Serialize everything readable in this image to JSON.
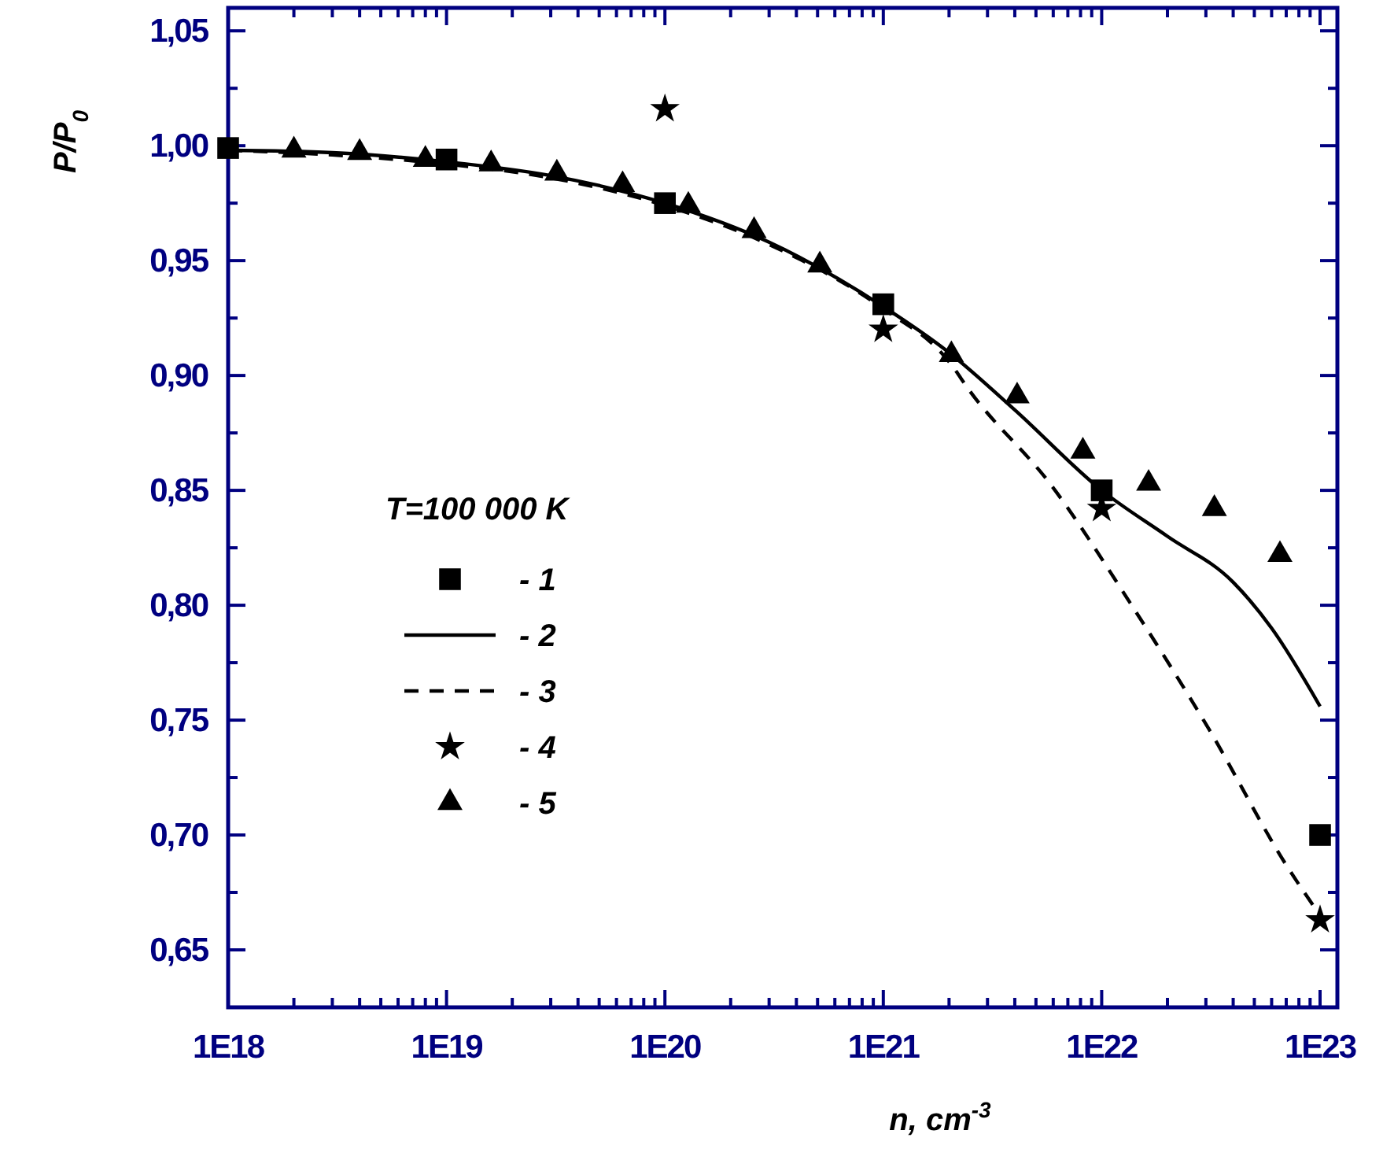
{
  "chart_data": {
    "type": "scatter",
    "xlabel": "n, cm$^{-3}$",
    "ylabel": "P/P$_{0}$",
    "legend_title": "T=100 000 K",
    "legend": "bottom left",
    "log": "x",
    "grid": false,
    "xlim": [
      1e+18,
      1.2e+23
    ],
    "ylim": [
      0.625,
      1.06
    ],
    "xticks": [
      {
        "value": 1e+18,
        "label": "1E18"
      },
      {
        "value": 1e+19,
        "label": "1E19"
      },
      {
        "value": 1e+20,
        "label": "1E20"
      },
      {
        "value": 1e+21,
        "label": "1E21"
      },
      {
        "value": 1e+22,
        "label": "1E22"
      },
      {
        "value": 1e+23,
        "label": "1E23"
      },
      {
        "value": 2e+18,
        "label": null
      },
      {
        "value": 3e+18,
        "label": null
      },
      {
        "value": 4e+18,
        "label": null
      },
      {
        "value": 5e+18,
        "label": null
      },
      {
        "value": 6e+18,
        "label": null
      },
      {
        "value": 7e+18,
        "label": null
      },
      {
        "value": 8e+18,
        "label": null
      },
      {
        "value": 9e+18,
        "label": null
      },
      {
        "value": 2e+19,
        "label": null
      },
      {
        "value": 3e+19,
        "label": null
      },
      {
        "value": 4e+19,
        "label": null
      },
      {
        "value": 5e+19,
        "label": null
      },
      {
        "value": 6e+19,
        "label": null
      },
      {
        "value": 7e+19,
        "label": null
      },
      {
        "value": 8e+19,
        "label": null
      },
      {
        "value": 9e+19,
        "label": null
      },
      {
        "value": 2e+20,
        "label": null
      },
      {
        "value": 3e+20,
        "label": null
      },
      {
        "value": 4e+20,
        "label": null
      },
      {
        "value": 5e+20,
        "label": null
      },
      {
        "value": 6e+20,
        "label": null
      },
      {
        "value": 7e+20,
        "label": null
      },
      {
        "value": 8e+20,
        "label": null
      },
      {
        "value": 9e+20,
        "label": null
      },
      {
        "value": 2e+21,
        "label": null
      },
      {
        "value": 3e+21,
        "label": null
      },
      {
        "value": 4e+21,
        "label": null
      },
      {
        "value": 5e+21,
        "label": null
      },
      {
        "value": 6e+21,
        "label": null
      },
      {
        "value": 7e+21,
        "label": null
      },
      {
        "value": 8e+21,
        "label": null
      },
      {
        "value": 9e+21,
        "label": null
      },
      {
        "value": 2e+22,
        "label": null
      },
      {
        "value": 3e+22,
        "label": null
      },
      {
        "value": 4e+22,
        "label": null
      },
      {
        "value": 5e+22,
        "label": null
      },
      {
        "value": 6e+22,
        "label": null
      },
      {
        "value": 7e+22,
        "label": null
      },
      {
        "value": 8e+22,
        "label": null
      },
      {
        "value": 9e+22,
        "label": null
      }
    ],
    "yticks": [
      {
        "value": 0.65,
        "label": "0,65"
      },
      {
        "value": 0.7,
        "label": "0,70"
      },
      {
        "value": 0.75,
        "label": "0,75"
      },
      {
        "value": 0.8,
        "label": "0,80"
      },
      {
        "value": 0.85,
        "label": "0,85"
      },
      {
        "value": 0.9,
        "label": "0,90"
      },
      {
        "value": 0.95,
        "label": "0,95"
      },
      {
        "value": 1.0,
        "label": "1,00"
      },
      {
        "value": 1.05,
        "label": "1,05"
      },
      {
        "value": 0.675,
        "label": null
      },
      {
        "value": 0.725,
        "label": null
      },
      {
        "value": 0.775,
        "label": null
      },
      {
        "value": 0.825,
        "label": null
      },
      {
        "value": 0.875,
        "label": null
      },
      {
        "value": 0.925,
        "label": null
      },
      {
        "value": 0.975,
        "label": null
      },
      {
        "value": 1.025,
        "label": null
      }
    ],
    "series": [
      {
        "name": "- 1",
        "marker": "square",
        "color": "#000000",
        "x": [
          1e+18,
          1e+19,
          1e+20,
          1e+21,
          1e+22,
          1e+23
        ],
        "values": [
          0.999,
          0.994,
          0.975,
          0.931,
          0.85,
          0.7
        ]
      },
      {
        "name": "- 2",
        "type": "line",
        "line_style": "solid",
        "marker": "none",
        "color": "#000000",
        "x": [
          1e+18,
          3e+18,
          1e+19,
          3e+19,
          1e+20,
          3e+20,
          1e+21,
          2e+21,
          4e+21,
          1e+22,
          2e+22,
          4e+22,
          6e+22,
          1e+23
        ],
        "values": [
          0.998,
          0.997,
          0.993,
          0.987,
          0.975,
          0.958,
          0.93,
          0.91,
          0.885,
          0.85,
          0.83,
          0.81,
          0.79,
          0.756
        ]
      },
      {
        "name": "- 3",
        "type": "line",
        "line_style": "dashed",
        "marker": "none",
        "color": "#000000",
        "x": [
          1e+18,
          3e+18,
          1e+19,
          3e+19,
          1e+20,
          3e+20,
          1e+21,
          2e+21,
          2.5e+21,
          5.9e+21,
          1.35e+22,
          3.1e+22,
          7.1e+22,
          1e+23
        ],
        "values": [
          0.998,
          0.996,
          0.992,
          0.986,
          0.974,
          0.957,
          0.929,
          0.906,
          0.893,
          0.852,
          0.801,
          0.746,
          0.686,
          0.665
        ]
      },
      {
        "name": "- 4",
        "marker": "star",
        "color": "#000000",
        "x": [
          1e+20,
          1e+21,
          1e+22,
          1e+23
        ],
        "values": [
          1.016,
          0.92,
          0.842,
          0.663
        ]
      },
      {
        "name": "- 5",
        "marker": "triangle",
        "color": "#000000",
        "x": [
          2e+18,
          4e+18,
          8e+18,
          1.6e+19,
          3.2e+19,
          6.4e+19,
          1.28e+20,
          2.56e+20,
          5.12e+20,
          2.05e+21,
          4.1e+21,
          8.2e+21,
          1.64e+22,
          3.28e+22,
          6.55e+22
        ],
        "values": [
          0.998,
          0.997,
          0.994,
          0.992,
          0.988,
          0.983,
          0.974,
          0.963,
          0.948,
          0.909,
          0.891,
          0.867,
          0.853,
          0.842,
          0.822
        ]
      }
    ]
  }
}
